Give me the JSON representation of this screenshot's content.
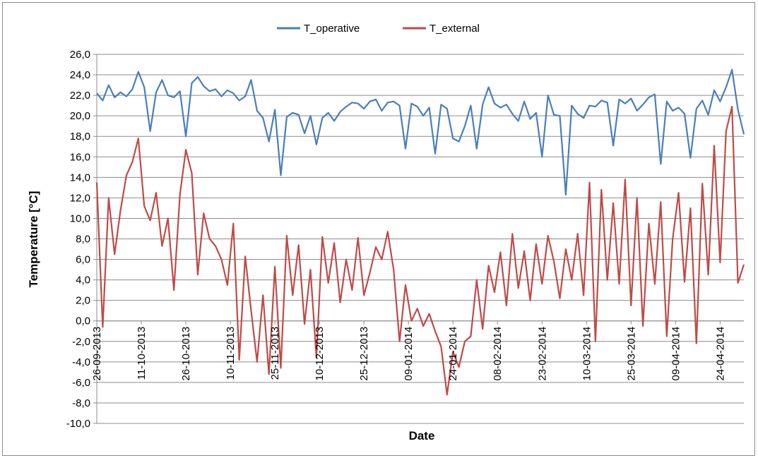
{
  "chart_data": {
    "type": "line",
    "title": "",
    "xlabel": "Date",
    "ylabel": "Temperature [°C]",
    "ylim": [
      -10,
      26
    ],
    "ytick_step": 2,
    "yticks": [
      "26,0",
      "24,0",
      "22,0",
      "20,0",
      "18,0",
      "16,0",
      "14,0",
      "12,0",
      "10,0",
      "8,0",
      "6,0",
      "4,0",
      "2,0",
      "0,0",
      "-2,0",
      "-4,0",
      "-6,0",
      "-8,0",
      "-10,0"
    ],
    "xlim": [
      "2013-09-26",
      "2014-05-02"
    ],
    "xticks": [
      "26-09-2013",
      "11-10-2013",
      "26-10-2013",
      "10-11-2013",
      "25-11-2013",
      "10-12-2013",
      "25-12-2013",
      "09-01-2014",
      "24-01-2014",
      "08-02-2014",
      "23-02-2014",
      "10-03-2014",
      "25-03-2014",
      "09-04-2014",
      "24-04-2014"
    ],
    "grid": "horizontal",
    "legend_position": "top",
    "x": [
      "2013-09-26",
      "2013-09-28",
      "2013-09-30",
      "2013-10-02",
      "2013-10-04",
      "2013-10-06",
      "2013-10-08",
      "2013-10-10",
      "2013-10-12",
      "2013-10-14",
      "2013-10-16",
      "2013-10-18",
      "2013-10-20",
      "2013-10-22",
      "2013-10-24",
      "2013-10-26",
      "2013-10-28",
      "2013-10-30",
      "2013-11-01",
      "2013-11-03",
      "2013-11-05",
      "2013-11-07",
      "2013-11-09",
      "2013-11-11",
      "2013-11-13",
      "2013-11-15",
      "2013-11-17",
      "2013-11-19",
      "2013-11-21",
      "2013-11-23",
      "2013-11-25",
      "2013-11-27",
      "2013-11-29",
      "2013-12-01",
      "2013-12-03",
      "2013-12-05",
      "2013-12-07",
      "2013-12-09",
      "2013-12-11",
      "2013-12-13",
      "2013-12-15",
      "2013-12-17",
      "2013-12-19",
      "2013-12-21",
      "2013-12-23",
      "2013-12-25",
      "2013-12-27",
      "2013-12-29",
      "2013-12-31",
      "2014-01-02",
      "2014-01-04",
      "2014-01-06",
      "2014-01-08",
      "2014-01-10",
      "2014-01-12",
      "2014-01-14",
      "2014-01-16",
      "2014-01-18",
      "2014-01-20",
      "2014-01-22",
      "2014-01-24",
      "2014-01-26",
      "2014-01-28",
      "2014-01-30",
      "2014-02-01",
      "2014-02-03",
      "2014-02-05",
      "2014-02-07",
      "2014-02-09",
      "2014-02-11",
      "2014-02-13",
      "2014-02-15",
      "2014-02-17",
      "2014-02-19",
      "2014-02-21",
      "2014-02-23",
      "2014-02-25",
      "2014-02-27",
      "2014-03-01",
      "2014-03-03",
      "2014-03-05",
      "2014-03-07",
      "2014-03-09",
      "2014-03-11",
      "2014-03-13",
      "2014-03-15",
      "2014-03-17",
      "2014-03-19",
      "2014-03-21",
      "2014-03-23",
      "2014-03-25",
      "2014-03-27",
      "2014-03-29",
      "2014-03-31",
      "2014-04-02",
      "2014-04-04",
      "2014-04-06",
      "2014-04-08",
      "2014-04-10",
      "2014-04-12",
      "2014-04-14",
      "2014-04-16",
      "2014-04-18",
      "2014-04-20",
      "2014-04-22",
      "2014-04-24",
      "2014-04-26",
      "2014-04-28",
      "2014-04-30",
      "2014-05-02"
    ],
    "series": [
      {
        "name": "T_operative",
        "color": "#4a7ebb",
        "values": [
          22.2,
          21.5,
          23.0,
          21.8,
          22.3,
          21.9,
          22.6,
          24.3,
          22.8,
          18.5,
          22.3,
          23.5,
          22.0,
          21.8,
          22.4,
          18.0,
          23.2,
          23.8,
          22.9,
          22.4,
          22.6,
          21.9,
          22.5,
          22.2,
          21.5,
          21.9,
          23.5,
          20.5,
          19.8,
          17.5,
          20.6,
          14.2,
          19.9,
          20.3,
          20.1,
          18.3,
          20.0,
          17.2,
          19.8,
          20.3,
          19.5,
          20.4,
          20.9,
          21.3,
          21.2,
          20.7,
          21.4,
          21.6,
          20.5,
          21.3,
          21.4,
          21.0,
          16.8,
          21.2,
          20.9,
          20.0,
          20.8,
          16.3,
          21.1,
          20.7,
          17.8,
          17.5,
          19.0,
          21.0,
          16.8,
          21.1,
          22.8,
          21.2,
          20.8,
          21.1,
          20.2,
          19.5,
          21.4,
          19.7,
          20.3,
          16.0,
          22.0,
          20.1,
          20.0,
          12.3,
          21.0,
          20.2,
          19.8,
          21.0,
          20.9,
          21.5,
          21.3,
          17.1,
          21.6,
          21.2,
          21.7,
          20.5,
          21.1,
          21.8,
          22.1,
          15.3,
          21.4,
          20.5,
          20.8,
          20.2,
          15.9,
          20.7,
          21.5,
          20.1,
          22.5,
          21.4,
          22.8,
          24.5,
          20.6,
          18.2
        ]
      },
      {
        "name": "T_external",
        "color": "#be4b48",
        "values": [
          13.5,
          -0.6,
          12.0,
          6.5,
          10.8,
          14.2,
          15.5,
          17.8,
          11.2,
          9.8,
          12.5,
          7.3,
          10.0,
          3.0,
          12.3,
          16.7,
          14.4,
          4.5,
          10.5,
          8.0,
          7.3,
          6.0,
          3.5,
          9.5,
          -3.8,
          6.3,
          1.0,
          -4.0,
          2.5,
          -5.2,
          5.3,
          -4.6,
          8.3,
          2.5,
          7.4,
          -0.3,
          5.0,
          -3.6,
          8.2,
          3.7,
          7.6,
          1.8,
          6.0,
          3.0,
          8.1,
          2.5,
          4.7,
          7.2,
          6.0,
          8.7,
          5.0,
          -2.0,
          3.5,
          0.0,
          1.2,
          -0.5,
          0.7,
          -1.0,
          -2.5,
          -7.2,
          -3.0,
          -4.5,
          -2.0,
          -1.5,
          4.0,
          -0.8,
          5.4,
          2.8,
          6.7,
          1.5,
          8.5,
          3.2,
          6.8,
          2.0,
          7.5,
          3.6,
          8.3,
          5.8,
          2.2,
          7.0,
          4.0,
          8.5,
          2.5,
          13.5,
          -2.0,
          12.8,
          4.0,
          11.5,
          3.6,
          13.8,
          1.5,
          12.0,
          -0.5,
          9.5,
          3.6,
          11.6,
          -1.5,
          8.0,
          12.5,
          3.8,
          11.0,
          -2.2,
          13.4,
          4.5,
          17.1,
          5.7,
          18.5,
          20.9,
          3.7,
          5.5
        ]
      }
    ]
  }
}
